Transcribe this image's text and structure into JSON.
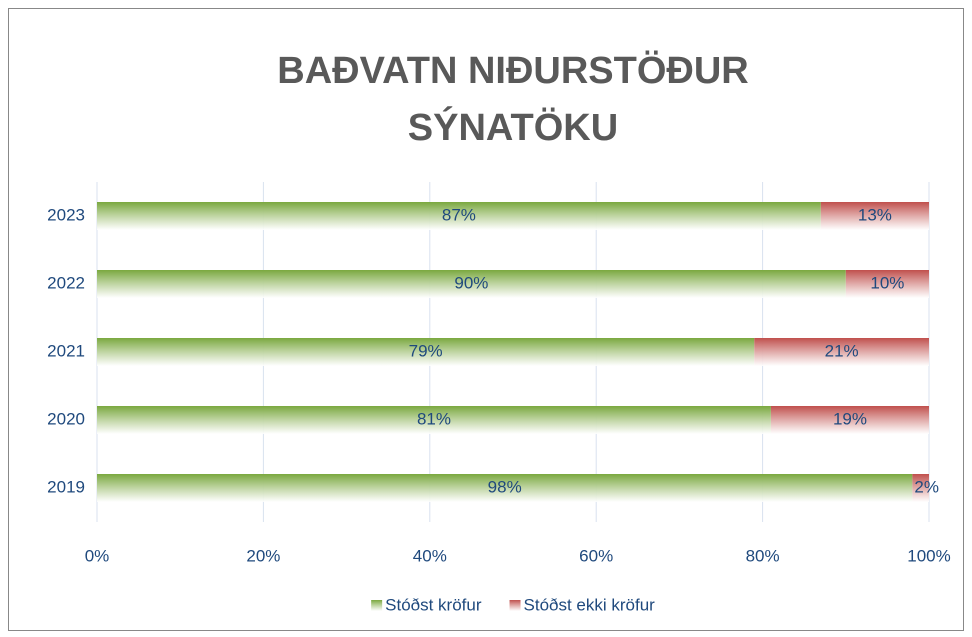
{
  "chart_data": {
    "type": "stacked_bar_horizontal",
    "title": [
      "BAÐVATN NIÐURSTÖÐUR",
      "SÝNATÖKU"
    ],
    "categories": [
      "2023",
      "2022",
      "2021",
      "2020",
      "2019"
    ],
    "series": [
      {
        "name": "Stóðst kröfur",
        "color": "#7aa83f",
        "values": [
          87,
          90,
          79,
          81,
          98
        ],
        "value_labels": [
          "87%",
          "90%",
          "79%",
          "81%",
          "98%"
        ]
      },
      {
        "name": "Stóðst ekki kröfur",
        "color": "#c0504d",
        "values": [
          13,
          10,
          21,
          19,
          2
        ],
        "value_labels": [
          "13%",
          "10%",
          "21%",
          "19%",
          "2%"
        ]
      }
    ],
    "xlim": [
      0,
      100
    ],
    "xticks": [
      {
        "value": 0,
        "label": "0%"
      },
      {
        "value": 20,
        "label": "20%"
      },
      {
        "value": 40,
        "label": "40%"
      },
      {
        "value": 60,
        "label": "60%"
      },
      {
        "value": 80,
        "label": "80%"
      },
      {
        "value": 100,
        "label": "100%"
      }
    ],
    "grid": true,
    "legend": "bottom"
  }
}
